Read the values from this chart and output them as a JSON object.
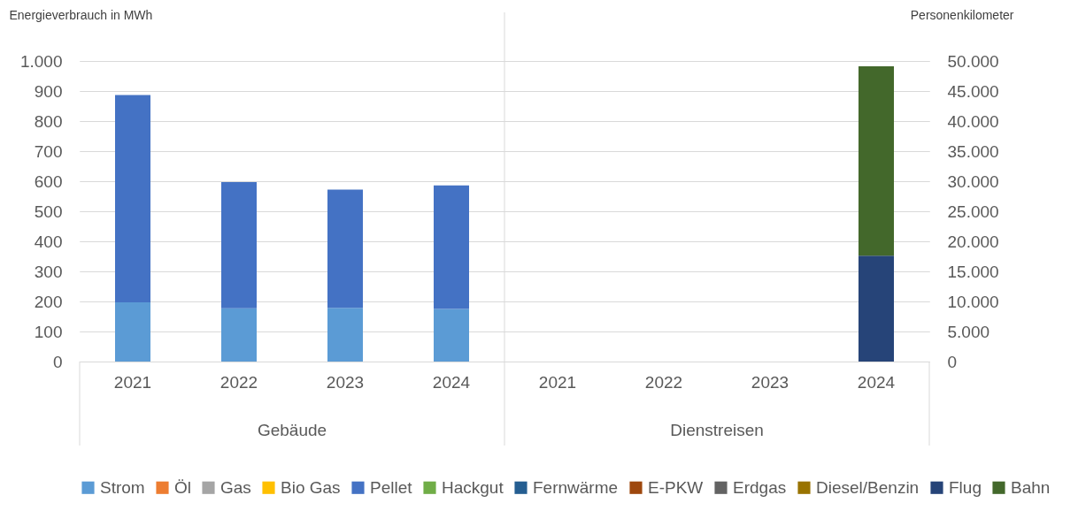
{
  "chart_data": {
    "type": "bar",
    "stacked": true,
    "ylabel": "Energieverbrauch in MWh",
    "y2label": "Personenkilometer",
    "categories": [
      "2021",
      "2022",
      "2023",
      "2024",
      "2021",
      "2022",
      "2023",
      "2024"
    ],
    "annotations": [
      "Gebäude",
      "Dienstreisen"
    ],
    "series": [
      {
        "name": "Strom",
        "color": "#5b9bd5",
        "values": [
          197,
          177,
          179,
          175,
          null,
          null,
          null,
          null
        ]
      },
      {
        "name": "Öl",
        "color": "#ed7d31",
        "values": [
          null,
          null,
          null,
          null,
          null,
          null,
          null,
          null
        ]
      },
      {
        "name": "Gas",
        "color": "#a5a5a5",
        "values": [
          null,
          null,
          null,
          null,
          null,
          null,
          null,
          null
        ]
      },
      {
        "name": "Bio Gas",
        "color": "#ffc000",
        "values": [
          null,
          null,
          null,
          null,
          null,
          null,
          null,
          null
        ]
      },
      {
        "name": "Pellet",
        "color": "#4472c4",
        "values": [
          690,
          420,
          393,
          411,
          null,
          null,
          null,
          null
        ]
      },
      {
        "name": "Hackgut",
        "color": "#70ad47",
        "values": [
          null,
          null,
          null,
          null,
          null,
          null,
          null,
          null
        ]
      },
      {
        "name": "Fernwärme",
        "color": "#255e91",
        "values": [
          null,
          null,
          null,
          null,
          null,
          null,
          null,
          null
        ]
      },
      {
        "name": "E-PKW",
        "color": "#9e480e",
        "values": [
          null,
          null,
          null,
          null,
          null,
          null,
          null,
          null
        ]
      },
      {
        "name": "Erdgas",
        "color": "#636363",
        "values": [
          null,
          null,
          null,
          null,
          null,
          null,
          null,
          null
        ]
      },
      {
        "name": "Diesel/Benzin",
        "color": "#997300",
        "values": [
          null,
          null,
          null,
          null,
          null,
          null,
          null,
          null
        ]
      },
      {
        "name": "Flug",
        "color": "#264478",
        "axis": "y2",
        "values": [
          null,
          null,
          null,
          null,
          null,
          null,
          null,
          17600
        ]
      },
      {
        "name": "Bahn",
        "color": "#43682b",
        "axis": "y2",
        "values": [
          null,
          null,
          null,
          null,
          null,
          null,
          null,
          31500
        ]
      }
    ],
    "ylim": [
      0,
      1000
    ],
    "yticks": [
      0,
      100,
      200,
      300,
      400,
      500,
      600,
      700,
      800,
      900,
      {
        "value": 1000,
        "label": "1.000"
      }
    ],
    "y2lim": [
      0,
      50000
    ],
    "y2ticks": [
      0,
      {
        "value": 5000,
        "label": "5.000"
      },
      {
        "value": 10000,
        "label": "10.000"
      },
      {
        "value": 15000,
        "label": "15.000"
      },
      {
        "value": 20000,
        "label": "20.000"
      },
      {
        "value": 25000,
        "label": "25.000"
      },
      {
        "value": 30000,
        "label": "30.000"
      },
      {
        "value": 35000,
        "label": "35.000"
      },
      {
        "value": 40000,
        "label": "40.000"
      },
      {
        "value": 45000,
        "label": "45.000"
      },
      {
        "value": 50000,
        "label": "50.000"
      }
    ],
    "grid": "y",
    "legend": "bottom"
  }
}
